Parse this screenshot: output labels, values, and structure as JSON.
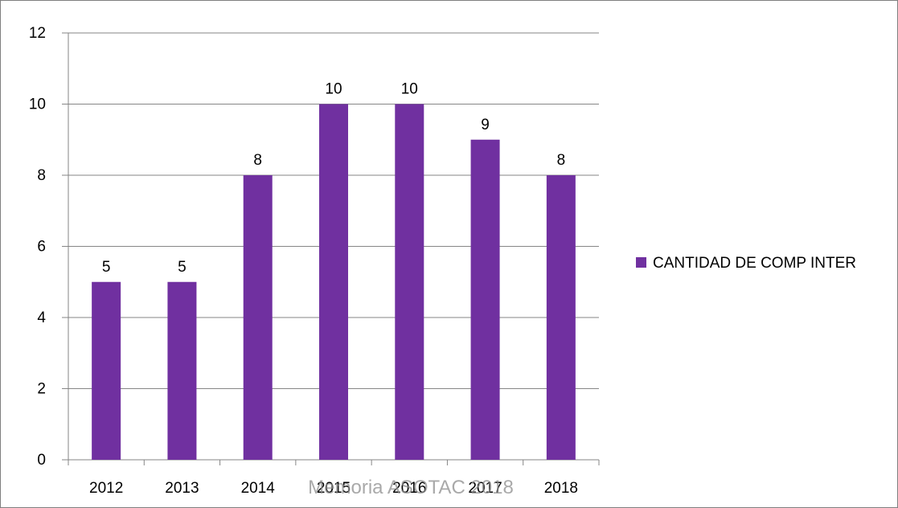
{
  "chart_data": {
    "type": "bar",
    "categories": [
      "2012",
      "2013",
      "2014",
      "2015",
      "2016",
      "2017",
      "2018"
    ],
    "series": [
      {
        "name": "CANTIDAD DE COMP INTER",
        "values": [
          5,
          5,
          8,
          10,
          10,
          9,
          8
        ]
      }
    ],
    "y_ticks": [
      "0",
      "2",
      "4",
      "6",
      "8",
      "10",
      "12"
    ],
    "ylim": [
      0,
      12
    ],
    "grid": true,
    "legend_position": "right",
    "data_labels": true,
    "bar_color": "#7030a0",
    "gridline_color": "#868686",
    "title": "",
    "xlabel": "",
    "ylabel": ""
  },
  "watermark": "Memoria ASOTAC 2018"
}
